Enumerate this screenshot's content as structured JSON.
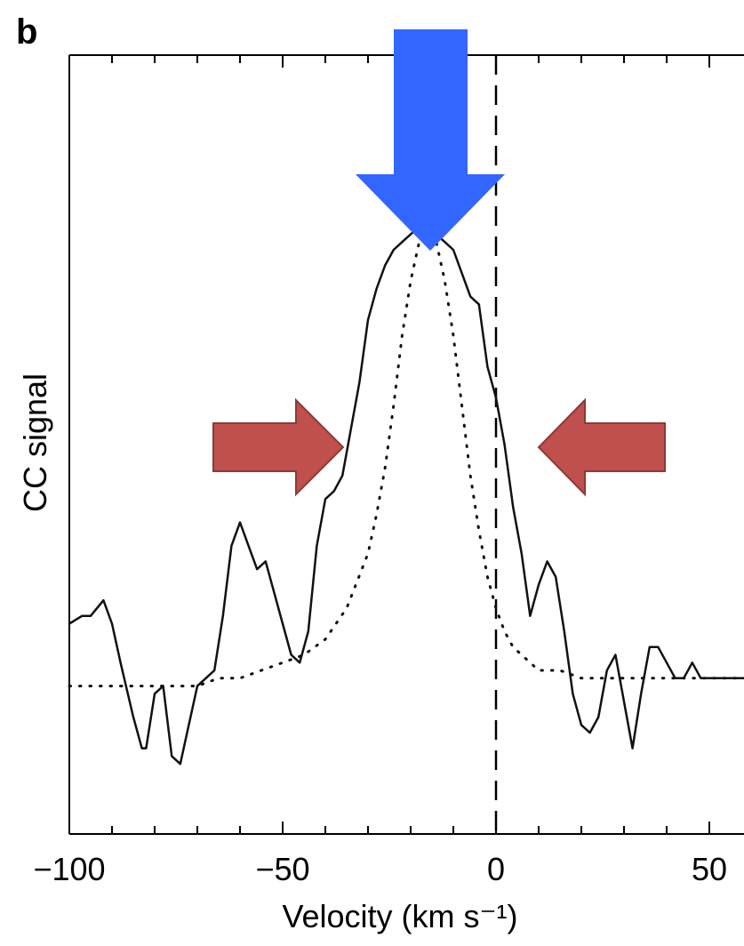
{
  "panel_label": "b",
  "chart_data": {
    "type": "line",
    "xlabel": "Velocity (km s⁻¹)",
    "ylabel": "CC signal",
    "xlim": [
      -100,
      60
    ],
    "ylim": [
      0,
      1
    ],
    "x_ticks": [
      -100,
      -50,
      0,
      50
    ],
    "x_tick_labels": [
      "−100",
      "−50",
      "0",
      "50"
    ],
    "y_ticks_shown": false,
    "grid": false,
    "reference_line": {
      "x": 0,
      "style": "dashed"
    },
    "series": [
      {
        "style": "solid",
        "x": [
          -100,
          -97,
          -95,
          -92,
          -90,
          -88,
          -85,
          -83,
          -82,
          -80,
          -78,
          -76,
          -74,
          -72,
          -70,
          -68,
          -66,
          -64,
          -62,
          -60,
          -58,
          -56,
          -54,
          -52,
          -50,
          -48,
          -46,
          -44,
          -42,
          -40,
          -38,
          -36,
          -34,
          -32,
          -30,
          -28,
          -26,
          -24,
          -22,
          -20,
          -18,
          -16,
          -14,
          -12,
          -10,
          -8,
          -6,
          -4,
          -2,
          0,
          2,
          4,
          6,
          8,
          10,
          12,
          14,
          16,
          18,
          20,
          22,
          24,
          26,
          28,
          30,
          32,
          34,
          36,
          38,
          40,
          42,
          44,
          46,
          48,
          50,
          52,
          54,
          56,
          58,
          60
        ],
        "y": [
          0.27,
          0.28,
          0.28,
          0.3,
          0.27,
          0.22,
          0.15,
          0.11,
          0.11,
          0.18,
          0.19,
          0.1,
          0.09,
          0.14,
          0.19,
          0.2,
          0.21,
          0.28,
          0.37,
          0.4,
          0.37,
          0.34,
          0.35,
          0.31,
          0.27,
          0.23,
          0.22,
          0.26,
          0.37,
          0.43,
          0.44,
          0.46,
          0.52,
          0.58,
          0.66,
          0.7,
          0.73,
          0.75,
          0.76,
          0.77,
          0.78,
          0.79,
          0.77,
          0.76,
          0.75,
          0.72,
          0.69,
          0.68,
          0.6,
          0.56,
          0.5,
          0.42,
          0.36,
          0.28,
          0.32,
          0.35,
          0.33,
          0.26,
          0.18,
          0.14,
          0.13,
          0.15,
          0.21,
          0.23,
          0.17,
          0.11,
          0.18,
          0.24,
          0.24,
          0.22,
          0.2,
          0.2,
          0.22,
          0.2,
          0.2,
          0.2,
          0.2,
          0.2,
          0.2,
          0.2
        ]
      },
      {
        "style": "dotted",
        "x": [
          -100,
          -95,
          -90,
          -85,
          -80,
          -75,
          -70,
          -65,
          -60,
          -55,
          -50,
          -45,
          -40,
          -35,
          -30,
          -28,
          -26,
          -24,
          -22,
          -20,
          -18,
          -16,
          -14,
          -12,
          -10,
          -8,
          -6,
          -4,
          -2,
          0,
          2,
          4,
          6,
          8,
          10,
          15,
          20,
          25,
          30,
          35,
          40,
          45,
          50,
          55,
          60
        ],
        "y": [
          0.19,
          0.19,
          0.19,
          0.19,
          0.19,
          0.19,
          0.19,
          0.2,
          0.2,
          0.21,
          0.22,
          0.23,
          0.25,
          0.29,
          0.36,
          0.41,
          0.47,
          0.55,
          0.64,
          0.71,
          0.76,
          0.78,
          0.76,
          0.71,
          0.64,
          0.55,
          0.46,
          0.39,
          0.33,
          0.29,
          0.26,
          0.24,
          0.23,
          0.22,
          0.21,
          0.21,
          0.2,
          0.2,
          0.2,
          0.2,
          0.2,
          0.2,
          0.2,
          0.2,
          0.2
        ]
      }
    ]
  },
  "annotations": {
    "down_arrow_color": "#3366ff",
    "side_arrow_color": "#c0504d",
    "side_arrow_border": "#8c3a35"
  }
}
